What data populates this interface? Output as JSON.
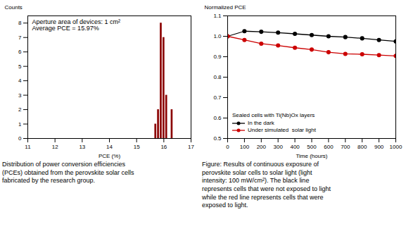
{
  "chart_data": [
    {
      "type": "histogram",
      "bins": [
        15.45,
        15.55,
        15.65,
        15.75,
        15.85,
        15.95,
        16.05,
        16.15,
        16.25,
        16.35,
        16.45
      ],
      "counts": [
        0,
        0,
        1,
        2,
        8,
        7,
        3,
        0,
        2,
        0
      ],
      "color": "#8B0000",
      "xlim": [
        11,
        17
      ],
      "ylim": [
        0,
        8.5
      ],
      "xticks": [
        11,
        12,
        13,
        14,
        15,
        16,
        17
      ],
      "yticks": [
        0,
        1,
        2,
        3,
        4,
        5,
        6,
        7,
        8
      ],
      "xlabel": "PCE (%)",
      "ylabel": "Counts",
      "annotations": [
        "Aperture area of devices: 1 cm²\nAverage PCE = 15.97%"
      ],
      "caption": "Distribution of power conversion efficiencies\n(PCEs) obtained from the perovskite solar cells\nfabricated by the research group."
    },
    {
      "type": "line",
      "x": [
        0,
        100,
        200,
        300,
        400,
        500,
        600,
        700,
        800,
        900,
        1000
      ],
      "series": [
        {
          "name": "In the dark",
          "color": "#000000",
          "marker": "circle",
          "values": [
            1.0,
            1.025,
            1.022,
            1.018,
            1.012,
            1.006,
            1.0,
            0.996,
            0.99,
            0.982,
            0.975
          ]
        },
        {
          "name": "Under simulated  solar light",
          "color": "#cc0000",
          "marker": "circle",
          "values": [
            1.0,
            0.982,
            0.964,
            0.955,
            0.944,
            0.935,
            0.922,
            0.914,
            0.912,
            0.908,
            0.904
          ]
        }
      ],
      "xlim": [
        0,
        1000
      ],
      "ylim": [
        0.5,
        1.1
      ],
      "xticks": [
        0,
        100,
        200,
        300,
        400,
        500,
        600,
        700,
        800,
        900,
        1000
      ],
      "yticks": [
        0.5,
        0.6,
        0.7,
        0.8,
        0.9,
        {
          "value": 1.0,
          "label": "1.0"
        },
        1.1
      ],
      "xlabel": "Time (hours)",
      "ylabel": "Normalized PCE",
      "legend": "lower left",
      "legend_title": "Sealed cells with Ti(Nb)Ox layers",
      "caption": "Figure: Results of continuous exposure of\nperovskite solar cells to solar light (light\nintensity: 100 mW/cm²). The black line\nrepresents cells that were not exposed to light\nwhile the red line represents cells that were\nexposed to light."
    }
  ]
}
